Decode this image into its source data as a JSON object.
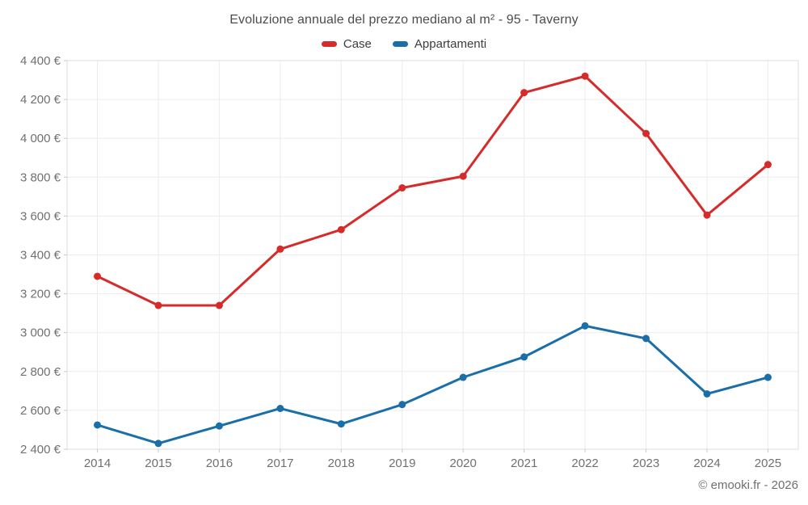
{
  "title": "Evoluzione annuale del prezzo mediano al m² - 95 - Taverny",
  "legend": [
    {
      "label": "Case",
      "color": "#d62b2b"
    },
    {
      "label": "Appartamenti",
      "color": "#1a6fa8"
    }
  ],
  "footer": "© emooki.fr - 2026",
  "colors": {
    "title_text": "#4c4c4c",
    "axis_text": "#707070",
    "grid_line": "#ececec",
    "plot_border": "#dcdcdc",
    "tick_mark": "#c9c9c9",
    "case_red": "#d62b2b",
    "appartamenti_blue": "#1a6fa8"
  },
  "chart_data": {
    "type": "line",
    "title": "Evoluzione annuale del prezzo mediano al m² - 95 - Taverny",
    "x": [
      2014,
      2015,
      2016,
      2017,
      2018,
      2019,
      2020,
      2021,
      2022,
      2023,
      2024,
      2025
    ],
    "series": [
      {
        "name": "Case",
        "color": "#d62b2b",
        "values": [
          3290,
          3140,
          3140,
          3430,
          3530,
          3745,
          3805,
          4235,
          4320,
          4025,
          3605,
          3865
        ]
      },
      {
        "name": "Appartamenti",
        "color": "#1a6fa8",
        "values": [
          2525,
          2430,
          2520,
          2610,
          2530,
          2630,
          2770,
          2875,
          3035,
          2970,
          2685,
          2770
        ]
      }
    ],
    "xlabel": "",
    "ylabel": "",
    "ylim": [
      2400,
      4400
    ],
    "ytick_step": 200,
    "ytick_labels": [
      "2 400 €",
      "2 600 €",
      "2 800 €",
      "3 000 €",
      "3 200 €",
      "3 400 €",
      "3 600 €",
      "3 800 €",
      "4 000 €",
      "4 200 €",
      "4 400 €"
    ],
    "grid": true,
    "legend_position": "top",
    "currency": "€"
  }
}
